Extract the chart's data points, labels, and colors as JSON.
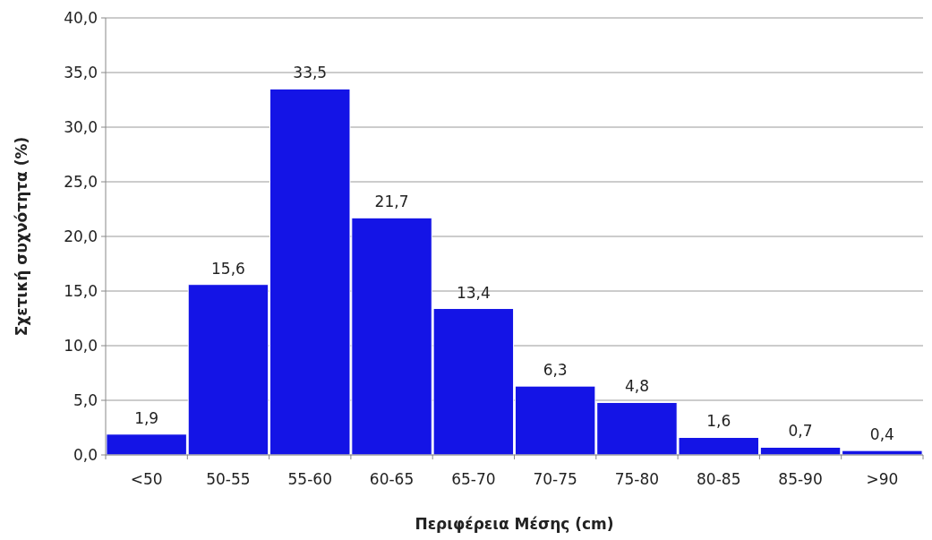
{
  "chart_data": {
    "type": "bar",
    "xlabel": "Περιφέρεια Μέσης (cm)",
    "ylabel": "Σχετική συχνότητα (%)",
    "categories": [
      "<50",
      "50-55",
      "55-60",
      "60-65",
      "65-70",
      "70-75",
      "75-80",
      "80-85",
      "85-90",
      ">90"
    ],
    "values": [
      1.9,
      15.6,
      33.5,
      21.7,
      13.4,
      6.3,
      4.8,
      1.6,
      0.7,
      0.4
    ],
    "value_labels": [
      "1,9",
      "15,6",
      "33,5",
      "21,7",
      "13,4",
      "6,3",
      "4,8",
      "1,6",
      "0,7",
      "0,4"
    ],
    "color": "#1414e6",
    "ylim": [
      0,
      40
    ],
    "yticks": [
      {
        "value": 0,
        "label": "0,0"
      },
      {
        "value": 5,
        "label": "5,0"
      },
      {
        "value": 10,
        "label": "10,0"
      },
      {
        "value": 15,
        "label": "15,0"
      },
      {
        "value": 20,
        "label": "20,0"
      },
      {
        "value": 25,
        "label": "25,0"
      },
      {
        "value": 30,
        "label": "30,0"
      },
      {
        "value": 35,
        "label": "35,0"
      },
      {
        "value": 40,
        "label": "40,0"
      }
    ],
    "grid": "y"
  }
}
